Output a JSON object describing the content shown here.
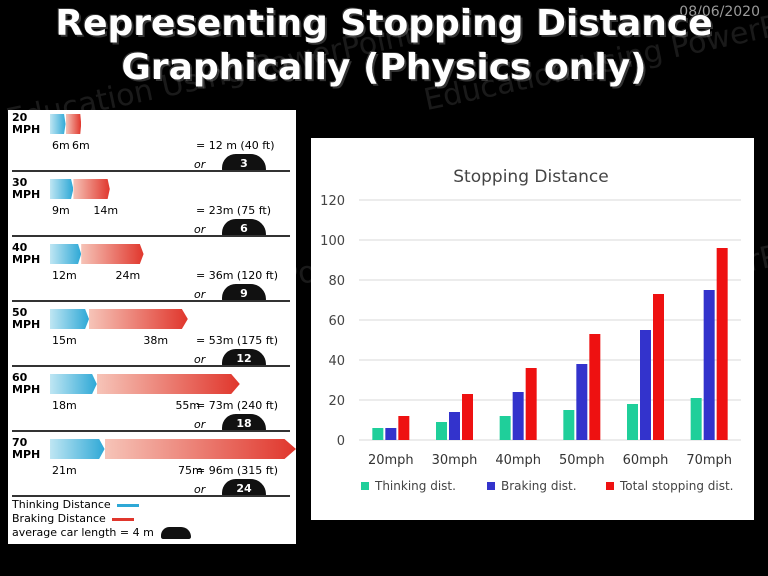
{
  "slide": {
    "date": "08/06/2020",
    "title_line1": "Representing Stopping Distance",
    "title_line2": "Graphically (Physics only)",
    "watermark": "Education Using PowerPoint"
  },
  "stopping_rows": [
    {
      "speed": "20",
      "unit": "MPH",
      "thinking_m": 6,
      "braking_m": 6,
      "thinking_label": "6m",
      "braking_label": "6m",
      "total": "= 12 m (40 ft)",
      "cars": "3"
    },
    {
      "speed": "30",
      "unit": "MPH",
      "thinking_m": 9,
      "braking_m": 14,
      "thinking_label": "9m",
      "braking_label": "14m",
      "total": "= 23m (75 ft)",
      "cars": "6"
    },
    {
      "speed": "40",
      "unit": "MPH",
      "thinking_m": 12,
      "braking_m": 24,
      "thinking_label": "12m",
      "braking_label": "24m",
      "total": "= 36m (120 ft)",
      "cars": "9"
    },
    {
      "speed": "50",
      "unit": "MPH",
      "thinking_m": 15,
      "braking_m": 38,
      "thinking_label": "15m",
      "braking_label": "38m",
      "total": "= 53m (175 ft)",
      "cars": "12"
    },
    {
      "speed": "60",
      "unit": "MPH",
      "thinking_m": 18,
      "braking_m": 55,
      "thinking_label": "18m",
      "braking_label": "55m",
      "total": "= 73m (240 ft)",
      "cars": "18"
    },
    {
      "speed": "70",
      "unit": "MPH",
      "thinking_m": 21,
      "braking_m": 75,
      "thinking_label": "21m",
      "braking_label": "75m",
      "total": "= 96m (315 ft)",
      "cars": "24"
    }
  ],
  "or_text": "or",
  "legend_left": {
    "thinking": "Thinking Distance",
    "braking": "Braking Distance",
    "car": "average car length = 4 m",
    "thinking_color": "#2ea8d6",
    "braking_color": "#e0362c"
  },
  "chart_data": {
    "type": "bar",
    "title": "Stopping Distance",
    "categories": [
      "20mph",
      "30mph",
      "40mph",
      "50mph",
      "60mph",
      "70mph"
    ],
    "series": [
      {
        "name": "Thinking dist.",
        "color": "#1fcf9a",
        "values": [
          6,
          9,
          12,
          15,
          18,
          21
        ]
      },
      {
        "name": "Braking dist.",
        "color": "#3333cc",
        "values": [
          6,
          14,
          24,
          38,
          55,
          75
        ]
      },
      {
        "name": "Total stopping dist.",
        "color": "#ee1111",
        "values": [
          12,
          23,
          36,
          53,
          73,
          96
        ]
      }
    ],
    "ylim": [
      0,
      120
    ],
    "yticks": [
      "0",
      "20",
      "40",
      "60",
      "80",
      "100",
      "120"
    ],
    "grid": true,
    "legend_position": "bottom"
  }
}
